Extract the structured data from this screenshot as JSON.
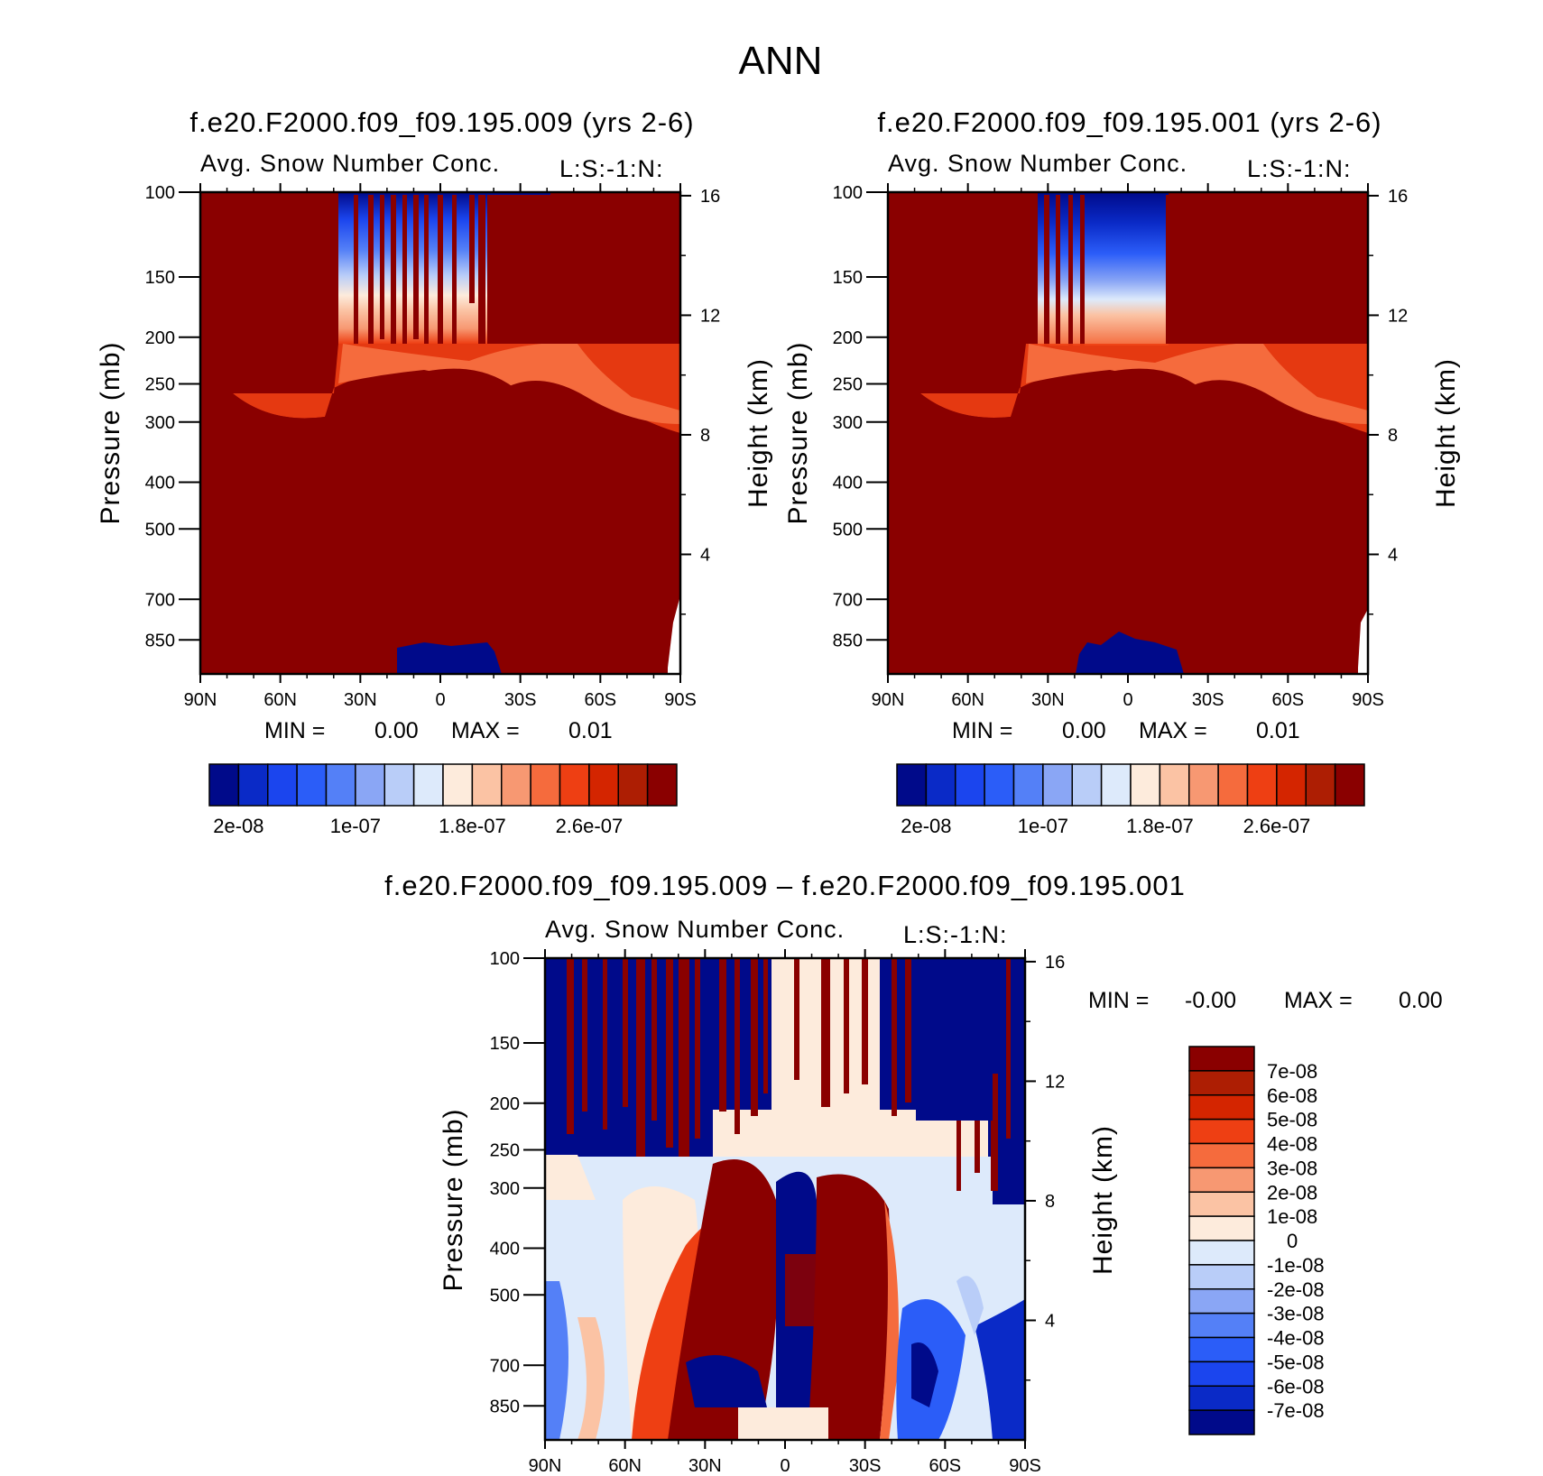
{
  "figure": {
    "title": "ANN"
  },
  "chart_data": [
    {
      "type": "heatmap",
      "title": "f.e20.F2000.f09_f09.195.009 (yrs 2-6)",
      "subtitle": "Avg. Snow Number Conc.",
      "units_label": "L:S:-1:N:",
      "ylabel": "Pressure (mb)",
      "ylabel_right": "Height (km)",
      "x_ticks": [
        "90N",
        "60N",
        "30N",
        "0",
        "30S",
        "60S",
        "90S"
      ],
      "y_ticks": [
        "100",
        "150",
        "200",
        "250",
        "300",
        "400",
        "500",
        "700",
        "850"
      ],
      "y_right_ticks": [
        "16",
        "12",
        "8",
        "4"
      ],
      "y_scale": "log",
      "ylim": [
        100,
        1000
      ],
      "xlim": [
        90,
        -90
      ],
      "min_label": "MIN =",
      "min_value": "0.00",
      "max_label": "MAX =",
      "max_value": "0.01",
      "colorbar_orientation": "horizontal",
      "colorbar_labels": [
        "2e-08",
        "1e-07",
        "1.8e-07",
        "2.6e-07"
      ],
      "colorbar_colors": [
        "#000a8a",
        "#0a2ac7",
        "#1b45ee",
        "#2b5df8",
        "#5480f7",
        "#8aa6f5",
        "#b9cdf8",
        "#ddeafb",
        "#fdebdc",
        "#fbc3a4",
        "#f79872",
        "#f56b3d",
        "#ee3f13",
        "#d42500",
        "#ad1e03",
        "#8a0000"
      ],
      "regions": [
        {
          "x_from": 90,
          "x_to": 38,
          "p_top": 100,
          "p_bottom": 250,
          "level": "max"
        },
        {
          "x_from": 38,
          "x_to": -38,
          "p_top": 100,
          "p_bottom": 200,
          "level": "low-to-high gradient with upper-tropospheric high streaks"
        },
        {
          "x_from": -38,
          "x_to": -90,
          "p_top": 100,
          "p_bottom": 300,
          "level": "max"
        },
        {
          "x_from": 90,
          "x_to": -90,
          "p_top": 250,
          "p_bottom": 1000,
          "level": "max"
        },
        {
          "x_from": 18,
          "x_to": -22,
          "p_top": 820,
          "p_bottom": 1000,
          "level": "min"
        }
      ]
    },
    {
      "type": "heatmap",
      "title": "f.e20.F2000.f09_f09.195.001 (yrs 2-6)",
      "subtitle": "Avg. Snow Number Conc.",
      "units_label": "L:S:-1:N:",
      "ylabel": "Pressure (mb)",
      "ylabel_right": "Height (km)",
      "x_ticks": [
        "90N",
        "60N",
        "30N",
        "0",
        "30S",
        "60S",
        "90S"
      ],
      "y_ticks": [
        "100",
        "150",
        "200",
        "250",
        "300",
        "400",
        "500",
        "700",
        "850"
      ],
      "y_right_ticks": [
        "16",
        "12",
        "8",
        "4"
      ],
      "y_scale": "log",
      "ylim": [
        100,
        1000
      ],
      "xlim": [
        90,
        -90
      ],
      "min_label": "MIN =",
      "min_value": "0.00",
      "max_label": "MAX =",
      "max_value": "0.01",
      "colorbar_orientation": "horizontal",
      "colorbar_labels": [
        "2e-08",
        "1e-07",
        "1.8e-07",
        "2.6e-07"
      ],
      "colorbar_colors": [
        "#000a8a",
        "#0a2ac7",
        "#1b45ee",
        "#2b5df8",
        "#5480f7",
        "#8aa6f5",
        "#b9cdf8",
        "#ddeafb",
        "#fdebdc",
        "#fbc3a4",
        "#f79872",
        "#f56b3d",
        "#ee3f13",
        "#d42500",
        "#ad1e03",
        "#8a0000"
      ],
      "regions": [
        {
          "x_from": 90,
          "x_to": 33,
          "p_top": 100,
          "p_bottom": 250,
          "level": "max"
        },
        {
          "x_from": 33,
          "x_to": -15,
          "p_top": 100,
          "p_bottom": 200,
          "level": "low-to-high gradient"
        },
        {
          "x_from": -15,
          "x_to": -90,
          "p_top": 100,
          "p_bottom": 300,
          "level": "max"
        },
        {
          "x_from": 90,
          "x_to": -90,
          "p_top": 250,
          "p_bottom": 1000,
          "level": "max"
        },
        {
          "x_from": 20,
          "x_to": -20,
          "p_top": 840,
          "p_bottom": 1000,
          "level": "min"
        }
      ]
    },
    {
      "type": "heatmap",
      "title": "f.e20.F2000.f09_f09.195.009 – f.e20.F2000.f09_f09.195.001",
      "subtitle": "Avg. Snow Number Conc.",
      "units_label": "L:S:-1:N:",
      "ylabel": "Pressure (mb)",
      "ylabel_right": "Height (km)",
      "x_ticks": [
        "90N",
        "60N",
        "30N",
        "0",
        "30S",
        "60S",
        "90S"
      ],
      "y_ticks": [
        "100",
        "150",
        "200",
        "250",
        "300",
        "400",
        "500",
        "700",
        "850"
      ],
      "y_right_ticks": [
        "16",
        "12",
        "8",
        "4"
      ],
      "y_scale": "log",
      "ylim": [
        100,
        1000
      ],
      "xlim": [
        90,
        -90
      ],
      "min_label": "MIN =",
      "min_value": "-0.00",
      "max_label": "MAX =",
      "max_value": "0.00",
      "colorbar_orientation": "vertical",
      "colorbar_labels": [
        "7e-08",
        "6e-08",
        "5e-08",
        "4e-08",
        "3e-08",
        "2e-08",
        "1e-08",
        "0",
        "-1e-08",
        "-2e-08",
        "-3e-08",
        "-4e-08",
        "-5e-08",
        "-6e-08",
        "-7e-08"
      ],
      "colorbar_colors": [
        "#8a0000",
        "#ad1e03",
        "#d42500",
        "#ee3f13",
        "#f56b3d",
        "#f79872",
        "#fbc3a4",
        "#fdebdc",
        "#ddeafb",
        "#b9cdf8",
        "#8aa6f5",
        "#5480f7",
        "#2b5df8",
        "#1b45ee",
        "#0a2ac7",
        "#000a8a"
      ]
    }
  ]
}
